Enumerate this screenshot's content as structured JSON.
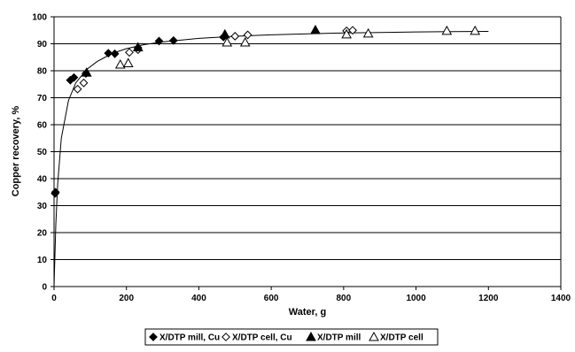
{
  "chart_data": {
    "type": "scatter",
    "xlabel": "Water, g",
    "ylabel": "Copper recovery, %",
    "xlim": [
      0,
      1400
    ],
    "ylim": [
      0,
      100
    ],
    "xticks": [
      0,
      200,
      400,
      600,
      800,
      1000,
      1200,
      1400
    ],
    "yticks": [
      0,
      10,
      20,
      30,
      40,
      50,
      60,
      70,
      80,
      90,
      100
    ],
    "grid": "horizontal",
    "legend_position": "bottom",
    "series": [
      {
        "name": "X/DTP mill, Cu",
        "marker": "diamond-filled",
        "points": [
          [
            3,
            34.5
          ],
          [
            4,
            35
          ],
          [
            45,
            76.5
          ],
          [
            55,
            77.5
          ],
          [
            88,
            79
          ],
          [
            150,
            86.5
          ],
          [
            168,
            86.3
          ],
          [
            232,
            88.5
          ],
          [
            290,
            91
          ],
          [
            330,
            91.2
          ],
          [
            468,
            92.5
          ]
        ]
      },
      {
        "name": "X/DTP cell, Cu",
        "marker": "diamond-open",
        "points": [
          [
            65,
            73.2
          ],
          [
            82,
            75.5
          ],
          [
            208,
            86.8
          ],
          [
            232,
            87.8
          ],
          [
            500,
            92.8
          ],
          [
            535,
            93.3
          ],
          [
            808,
            94.8
          ],
          [
            825,
            95
          ]
        ]
      },
      {
        "name": "X/DTP mill",
        "marker": "triangle-filled",
        "points": [
          [
            90,
            79.3
          ],
          [
            232,
            88.7
          ],
          [
            472,
            93.5
          ],
          [
            722,
            95.1
          ]
        ]
      },
      {
        "name": "X/DTP cell",
        "marker": "triangle-open",
        "points": [
          [
            183,
            82.3
          ],
          [
            205,
            82.8
          ],
          [
            478,
            90.5
          ],
          [
            528,
            90.5
          ],
          [
            808,
            93.5
          ],
          [
            868,
            93.8
          ],
          [
            1085,
            94.8
          ],
          [
            1163,
            94.8
          ]
        ]
      }
    ],
    "trendline": {
      "x": [
        0,
        5,
        10,
        20,
        40,
        60,
        90,
        120,
        160,
        200,
        250,
        300,
        400,
        500,
        600,
        700,
        800,
        900,
        1000,
        1100,
        1200
      ],
      "y": [
        0,
        23,
        38,
        55,
        69,
        75.5,
        80.5,
        83.5,
        86.4,
        88.2,
        89.7,
        90.7,
        92,
        92.8,
        93.3,
        93.7,
        94,
        94.2,
        94.4,
        94.5,
        94.6
      ]
    }
  }
}
